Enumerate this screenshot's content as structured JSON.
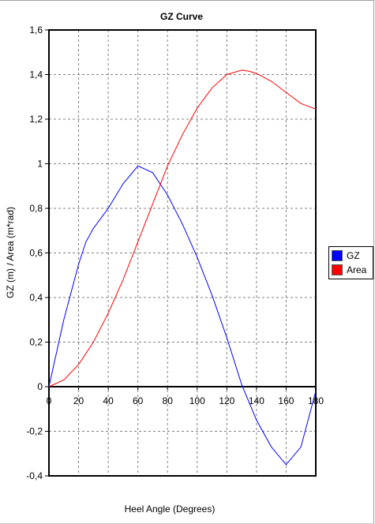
{
  "chart_data": {
    "type": "line",
    "title": "GZ Curve",
    "xlabel": "Heel Angle (Degrees)",
    "ylabel": "GZ (m) / Area (m*rad)",
    "xlim": [
      0,
      180
    ],
    "ylim": [
      -0.4,
      1.6
    ],
    "x_ticks": [
      "0",
      "20",
      "40",
      "60",
      "80",
      "100",
      "120",
      "140",
      "160",
      "180"
    ],
    "y_ticks": [
      "1,6",
      "1,4",
      "1,2",
      "1",
      "0,8",
      "0,6",
      "0,4",
      "0,2",
      "0",
      "-0,2",
      "-0,4"
    ],
    "grid": true,
    "legend_position": "right",
    "series": [
      {
        "name": "GZ",
        "color": "#0000ff",
        "x": [
          0,
          10,
          20,
          25,
          30,
          40,
          50,
          60,
          70,
          80,
          90,
          100,
          110,
          120,
          130,
          140,
          150,
          160,
          170,
          180
        ],
        "y": [
          0,
          0.3,
          0.55,
          0.65,
          0.71,
          0.8,
          0.91,
          0.99,
          0.96,
          0.86,
          0.73,
          0.58,
          0.41,
          0.22,
          0.01,
          -0.15,
          -0.27,
          -0.35,
          -0.27,
          -0.02
        ]
      },
      {
        "name": "Area",
        "color": "#ff0000",
        "x": [
          0,
          10,
          20,
          30,
          40,
          50,
          60,
          70,
          80,
          90,
          100,
          110,
          120,
          130,
          135,
          140,
          150,
          160,
          170,
          180
        ],
        "y": [
          0,
          0.03,
          0.1,
          0.2,
          0.33,
          0.48,
          0.65,
          0.82,
          0.99,
          1.13,
          1.25,
          1.34,
          1.4,
          1.42,
          1.415,
          1.405,
          1.37,
          1.32,
          1.27,
          1.245
        ]
      }
    ]
  }
}
